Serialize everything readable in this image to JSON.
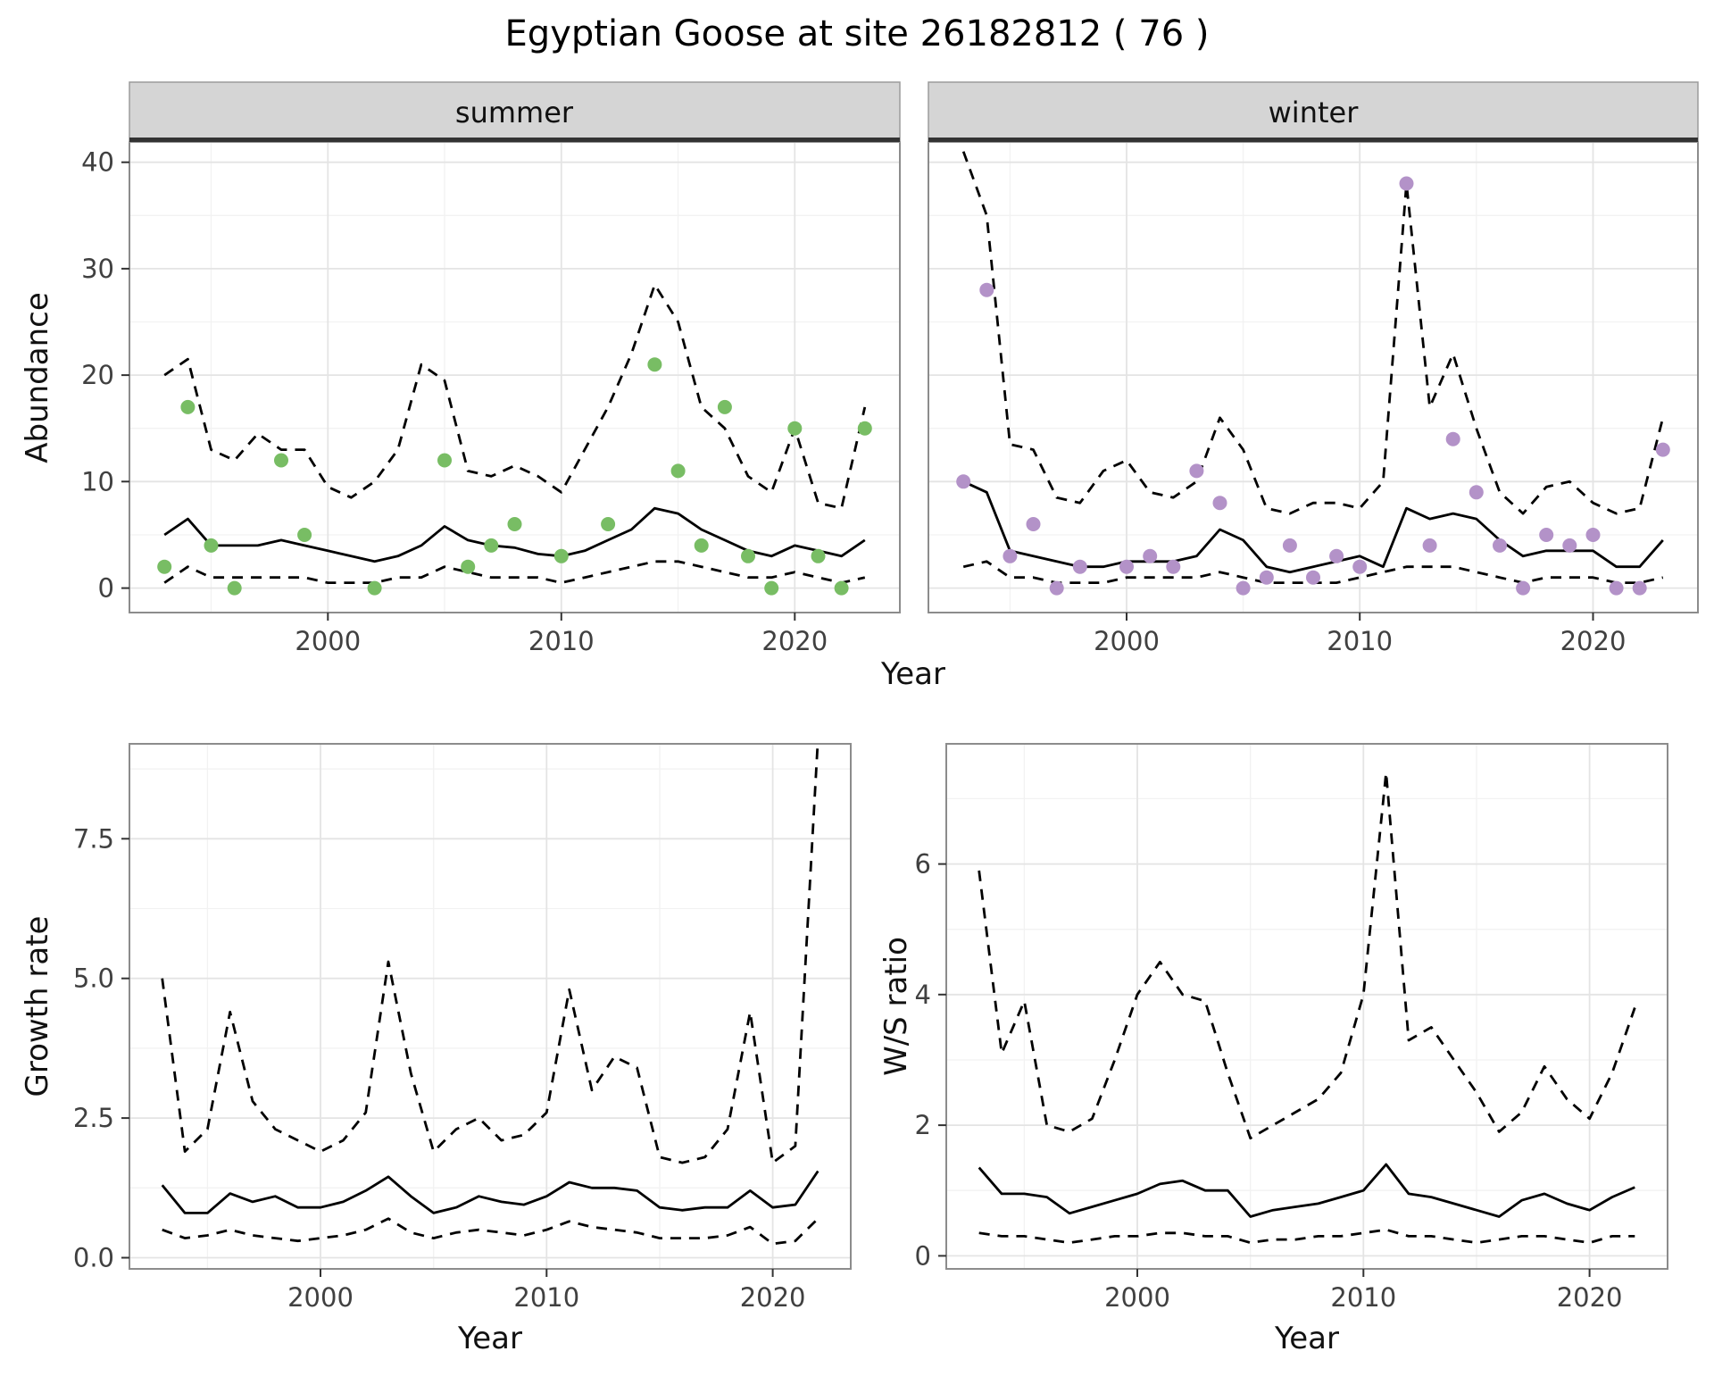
{
  "title": "Egyptian Goose at site 26182812 ( 76 )",
  "axes": {
    "abundance": "Abundance",
    "year_top": "Year",
    "growth": "Growth rate",
    "ws": "W/S ratio",
    "year_bottom_left": "Year",
    "year_bottom_right": "Year"
  },
  "colors": {
    "summer_point": "#78bd64",
    "winter_point": "#b392c8",
    "line": "#000000",
    "strip_bg": "#d5d5d5",
    "strip_border": "#9b9b9b",
    "strip_underline": "#333333",
    "panel_border": "#8c8c8c",
    "grid_major": "#e4e4e4",
    "grid_minor": "#f2f2f2",
    "tick_mark": "#333333",
    "tick_text": "#404040"
  },
  "chart_data": [
    {
      "id": "abundance-summer",
      "type": "line",
      "facet_label": "summer",
      "ylabel": "Abundance",
      "xlabel": "Year",
      "x_start": 1993,
      "xlim": [
        1991.5,
        2024.5
      ],
      "ylim": [
        -2.3,
        41.9
      ],
      "xticks": [
        2000,
        2010,
        2020
      ],
      "yticks": [
        0,
        10,
        20,
        30,
        40
      ],
      "ytick_labels": [
        "0",
        "10",
        "20",
        "30",
        "40"
      ],
      "show_ytick_labels": true,
      "series": [
        {
          "name": "median",
          "style": "solid",
          "values": [
            5,
            6.5,
            4,
            4,
            4,
            4.5,
            4,
            3.5,
            3,
            2.5,
            3,
            4,
            5.8,
            4.5,
            4,
            3.8,
            3.2,
            3,
            3.5,
            4.5,
            5.5,
            7.5,
            7,
            5.5,
            4.5,
            3.5,
            3,
            4,
            3.5,
            3,
            4.5
          ]
        },
        {
          "name": "upper-ci",
          "style": "dashed",
          "values": [
            20,
            21.5,
            13,
            12,
            14.5,
            13,
            13,
            9.5,
            8.5,
            10,
            13,
            21,
            19.5,
            11,
            10.5,
            11.5,
            10.5,
            9,
            13,
            17,
            22,
            28.5,
            25,
            17,
            15,
            10.5,
            9,
            15,
            8,
            7.5,
            17
          ]
        },
        {
          "name": "lower-ci",
          "style": "dashed",
          "values": [
            0.5,
            2,
            1,
            1,
            1,
            1,
            1,
            0.5,
            0.5,
            0.5,
            1,
            1,
            2,
            1.5,
            1,
            1,
            1,
            0.5,
            1,
            1.5,
            2,
            2.5,
            2.5,
            2,
            1.5,
            1,
            1,
            1.5,
            1,
            0.5,
            1
          ]
        }
      ],
      "points": {
        "color_key": "summer_point",
        "x": [
          1993,
          1994,
          1995,
          1996,
          1998,
          1999,
          2002,
          2005,
          2006,
          2007,
          2008,
          2010,
          2012,
          2014,
          2015,
          2016,
          2017,
          2018,
          2019,
          2020,
          2021,
          2022,
          2023
        ],
        "y": [
          2,
          17,
          4,
          0,
          12,
          5,
          0,
          12,
          2,
          4,
          6,
          3,
          6,
          21,
          11,
          4,
          17,
          3,
          0,
          15,
          3,
          0,
          15
        ]
      }
    },
    {
      "id": "abundance-winter",
      "type": "line",
      "facet_label": "winter",
      "ylabel": "Abundance",
      "xlabel": "Year",
      "x_start": 1993,
      "xlim": [
        1991.5,
        2024.5
      ],
      "ylim": [
        -2.3,
        41.9
      ],
      "xticks": [
        2000,
        2010,
        2020
      ],
      "yticks": [
        0,
        10,
        20,
        30,
        40
      ],
      "ytick_labels": [
        "0",
        "10",
        "20",
        "30",
        "40"
      ],
      "show_ytick_labels": false,
      "series": [
        {
          "name": "median",
          "style": "solid",
          "values": [
            10,
            9,
            3.5,
            3,
            2.5,
            2,
            2,
            2.5,
            2.5,
            2.5,
            3,
            5.5,
            4.5,
            2,
            1.5,
            2,
            2.5,
            3,
            2,
            7.5,
            6.5,
            7,
            6.5,
            4.5,
            3,
            3.5,
            3.5,
            3.5,
            2,
            2,
            4.5
          ]
        },
        {
          "name": "upper-ci",
          "style": "dashed",
          "values": [
            41,
            35,
            13.5,
            13,
            8.5,
            8,
            11,
            12,
            9,
            8.5,
            10,
            16,
            13,
            7.5,
            7,
            8,
            8,
            7.5,
            10,
            38,
            17,
            22,
            15,
            9,
            7,
            9.5,
            10,
            8,
            7,
            7.5,
            16
          ]
        },
        {
          "name": "lower-ci",
          "style": "dashed",
          "values": [
            2,
            2.5,
            1,
            1,
            0.5,
            0.5,
            0.5,
            1,
            1,
            1,
            1,
            1.5,
            1,
            0.5,
            0.5,
            0.5,
            0.5,
            1,
            1.5,
            2,
            2,
            2,
            1.5,
            1,
            0.5,
            1,
            1,
            1,
            0.5,
            0.5,
            1
          ]
        }
      ],
      "points": {
        "color_key": "winter_point",
        "x": [
          1993,
          1994,
          1995,
          1996,
          1997,
          1998,
          2000,
          2001,
          2002,
          2003,
          2004,
          2005,
          2006,
          2007,
          2008,
          2009,
          2010,
          2012,
          2013,
          2014,
          2015,
          2016,
          2017,
          2018,
          2019,
          2020,
          2021,
          2022,
          2023
        ],
        "y": [
          10,
          28,
          3,
          6,
          0,
          2,
          2,
          3,
          2,
          11,
          8,
          0,
          1,
          4,
          1,
          3,
          2,
          38,
          4,
          14,
          9,
          4,
          0,
          5,
          4,
          5,
          0,
          0,
          13
        ]
      }
    },
    {
      "id": "growth-rate",
      "type": "line",
      "ylabel": "Growth rate",
      "xlabel": "Year",
      "x_start": 1993,
      "xlim": [
        1991.55,
        2023.45
      ],
      "ylim": [
        -0.2,
        9.2
      ],
      "xticks": [
        2000,
        2010,
        2020
      ],
      "yticks": [
        0,
        2.5,
        5,
        7.5
      ],
      "ytick_labels": [
        "0.0",
        "2.5",
        "5.0",
        "7.5"
      ],
      "show_ytick_labels": true,
      "series": [
        {
          "name": "median",
          "style": "solid",
          "values": [
            1.3,
            0.8,
            0.8,
            1.15,
            1.0,
            1.1,
            0.9,
            0.9,
            1.0,
            1.2,
            1.45,
            1.1,
            0.8,
            0.9,
            1.1,
            1.0,
            0.95,
            1.1,
            1.35,
            1.25,
            1.25,
            1.2,
            0.9,
            0.85,
            0.9,
            0.9,
            1.2,
            0.9,
            0.95,
            1.55
          ]
        },
        {
          "name": "upper-ci",
          "style": "dashed",
          "values": [
            5.0,
            1.9,
            2.3,
            4.4,
            2.8,
            2.3,
            2.1,
            1.9,
            2.1,
            2.6,
            5.3,
            3.3,
            1.9,
            2.3,
            2.5,
            2.1,
            2.2,
            2.6,
            4.8,
            3.0,
            3.6,
            3.4,
            1.8,
            1.7,
            1.8,
            2.3,
            4.4,
            1.7,
            2.0,
            9.3
          ]
        },
        {
          "name": "lower-ci",
          "style": "dashed",
          "values": [
            0.5,
            0.35,
            0.4,
            0.5,
            0.4,
            0.35,
            0.3,
            0.35,
            0.4,
            0.5,
            0.7,
            0.45,
            0.35,
            0.45,
            0.5,
            0.45,
            0.4,
            0.5,
            0.65,
            0.55,
            0.5,
            0.45,
            0.35,
            0.35,
            0.35,
            0.4,
            0.55,
            0.25,
            0.3,
            0.7
          ]
        }
      ]
    },
    {
      "id": "ws-ratio",
      "type": "line",
      "ylabel": "W/S ratio",
      "xlabel": "Year",
      "x_start": 1993,
      "xlim": [
        1991.55,
        2023.45
      ],
      "ylim": [
        -0.2,
        7.84
      ],
      "xticks": [
        2000,
        2010,
        2020
      ],
      "yticks": [
        0,
        2,
        4,
        6
      ],
      "ytick_labels": [
        "0",
        "2",
        "4",
        "6"
      ],
      "show_ytick_labels": true,
      "series": [
        {
          "name": "median",
          "style": "solid",
          "values": [
            1.35,
            0.95,
            0.95,
            0.9,
            0.65,
            0.75,
            0.85,
            0.95,
            1.1,
            1.15,
            1.0,
            1.0,
            0.6,
            0.7,
            0.75,
            0.8,
            0.9,
            1.0,
            1.4,
            0.95,
            0.9,
            0.8,
            0.7,
            0.6,
            0.85,
            0.95,
            0.8,
            0.7,
            0.9,
            1.05
          ]
        },
        {
          "name": "upper-ci",
          "style": "dashed",
          "values": [
            5.9,
            3.1,
            3.9,
            2.0,
            1.9,
            2.1,
            3.0,
            4.0,
            4.5,
            4.0,
            3.9,
            2.8,
            1.8,
            2.0,
            2.2,
            2.4,
            2.8,
            4.0,
            7.4,
            3.3,
            3.5,
            3.0,
            2.5,
            1.9,
            2.2,
            2.9,
            2.4,
            2.1,
            2.8,
            3.8
          ]
        },
        {
          "name": "lower-ci",
          "style": "dashed",
          "values": [
            0.35,
            0.3,
            0.3,
            0.25,
            0.2,
            0.25,
            0.3,
            0.3,
            0.35,
            0.35,
            0.3,
            0.3,
            0.2,
            0.25,
            0.25,
            0.3,
            0.3,
            0.35,
            0.4,
            0.3,
            0.3,
            0.25,
            0.2,
            0.25,
            0.3,
            0.3,
            0.25,
            0.2,
            0.3,
            0.3
          ]
        }
      ]
    }
  ]
}
